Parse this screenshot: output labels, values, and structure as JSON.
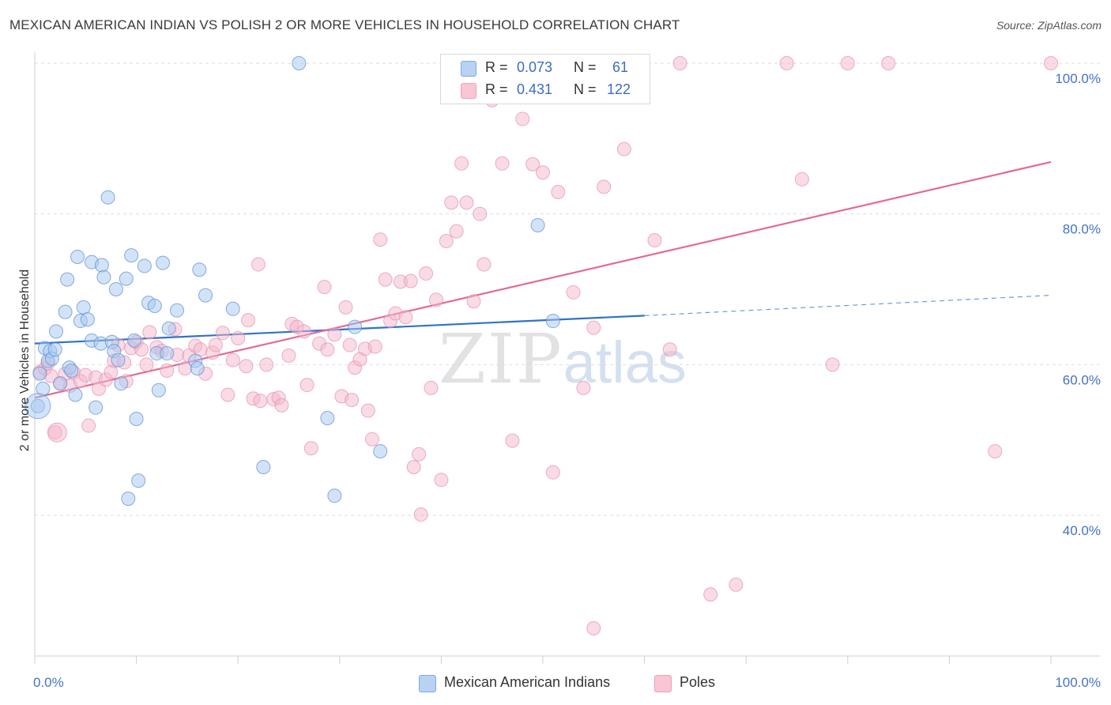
{
  "title": "MEXICAN AMERICAN INDIAN VS POLISH 2 OR MORE VEHICLES IN HOUSEHOLD CORRELATION CHART",
  "source": "Source: ZipAtlas.com",
  "watermark": {
    "zip": "ZIP",
    "atlas": "atlas"
  },
  "legend": {
    "rows": [
      {
        "r_label": "R =",
        "r_value": "0.073",
        "n_label": "N =",
        "n_value": "61"
      },
      {
        "r_label": "R =",
        "r_value": "0.431",
        "n_label": "N =",
        "n_value": "122"
      }
    ],
    "bottom": [
      "Mexican American Indians",
      "Poles"
    ]
  },
  "colors": {
    "blue_fill": "#a8c8f0",
    "blue_line": "#2f72c8",
    "pink_fill": "#f4b8cb",
    "pink_line": "#e26b93",
    "tick": "#4472c4"
  },
  "chart_data": {
    "type": "scatter",
    "title": "MEXICAN AMERICAN INDIAN VS POLISH 2 OR MORE VEHICLES IN HOUSEHOLD CORRELATION CHART",
    "xlabel": "",
    "ylabel": "2 or more Vehicles in Household",
    "xlim": [
      0,
      100
    ],
    "ylim": [
      20,
      102
    ],
    "x_tick_labels": [
      "0.0%",
      "100.0%"
    ],
    "y_ticks": [
      40,
      60,
      80,
      100
    ],
    "y_tick_labels": [
      "40.0%",
      "60.0%",
      "80.0%",
      "100.0%"
    ],
    "grid": true,
    "legend_placement": "top-center",
    "series": [
      {
        "name": "Mexican American Indians",
        "trend": {
          "x0": 0,
          "y0": 62.8,
          "x1": 60,
          "y1": 66.5,
          "dash_to_x": 100,
          "dash_to_y": 69.2
        },
        "points": [
          [
            0.3,
            54.5
          ],
          [
            0.5,
            58.8
          ],
          [
            0.8,
            56.8
          ],
          [
            1.0,
            62.2
          ],
          [
            1.3,
            60.5
          ],
          [
            1.5,
            61.8
          ],
          [
            1.7,
            60.8
          ],
          [
            2.0,
            62.0
          ],
          [
            2.1,
            64.4
          ],
          [
            2.5,
            57.5
          ],
          [
            3.0,
            67.0
          ],
          [
            3.2,
            71.3
          ],
          [
            3.4,
            59.6
          ],
          [
            3.6,
            59.2
          ],
          [
            4.0,
            56.0
          ],
          [
            4.2,
            74.3
          ],
          [
            4.5,
            65.8
          ],
          [
            4.8,
            67.6
          ],
          [
            5.2,
            66.0
          ],
          [
            5.6,
            73.6
          ],
          [
            5.6,
            63.2
          ],
          [
            6.0,
            54.3
          ],
          [
            6.5,
            62.8
          ],
          [
            6.6,
            73.2
          ],
          [
            6.8,
            71.6
          ],
          [
            7.2,
            82.2
          ],
          [
            7.6,
            63.0
          ],
          [
            7.8,
            61.8
          ],
          [
            8.0,
            70.0
          ],
          [
            8.2,
            60.6
          ],
          [
            8.5,
            57.5
          ],
          [
            9.0,
            71.4
          ],
          [
            9.2,
            42.2
          ],
          [
            9.5,
            74.5
          ],
          [
            9.8,
            63.2
          ],
          [
            10.0,
            52.8
          ],
          [
            10.2,
            44.6
          ],
          [
            10.8,
            73.1
          ],
          [
            11.2,
            68.2
          ],
          [
            11.8,
            67.8
          ],
          [
            12.0,
            61.5
          ],
          [
            12.2,
            56.6
          ],
          [
            12.6,
            73.5
          ],
          [
            13.0,
            61.5
          ],
          [
            13.2,
            64.8
          ],
          [
            14.0,
            67.2
          ],
          [
            15.8,
            60.5
          ],
          [
            16.0,
            59.5
          ],
          [
            16.2,
            72.6
          ],
          [
            16.8,
            69.2
          ],
          [
            19.5,
            67.4
          ],
          [
            22.5,
            46.4
          ],
          [
            26.0,
            100.0
          ],
          [
            28.8,
            52.9
          ],
          [
            29.5,
            42.6
          ],
          [
            31.5,
            65.0
          ],
          [
            34.0,
            48.5
          ],
          [
            49.5,
            78.5
          ],
          [
            51.0,
            65.8
          ]
        ]
      },
      {
        "name": "Poles",
        "trend": {
          "x0": 0,
          "y0": 55.6,
          "x1": 100,
          "y1": 86.9
        },
        "points": [
          [
            0.5,
            59.0
          ],
          [
            1.0,
            59.5
          ],
          [
            1.3,
            60.2
          ],
          [
            1.6,
            58.5
          ],
          [
            2.0,
            51.0
          ],
          [
            2.5,
            57.5
          ],
          [
            3.0,
            58.8
          ],
          [
            3.5,
            57.2
          ],
          [
            3.8,
            59.0
          ],
          [
            4.5,
            57.8
          ],
          [
            5.0,
            58.6
          ],
          [
            5.3,
            51.9
          ],
          [
            6.0,
            58.3
          ],
          [
            6.3,
            56.8
          ],
          [
            7.0,
            58.0
          ],
          [
            7.5,
            59.0
          ],
          [
            7.8,
            60.5
          ],
          [
            8.2,
            62.6
          ],
          [
            8.8,
            60.3
          ],
          [
            9.0,
            57.8
          ],
          [
            9.5,
            62.2
          ],
          [
            10.0,
            63.0
          ],
          [
            10.5,
            62.0
          ],
          [
            11.0,
            60.0
          ],
          [
            11.3,
            64.3
          ],
          [
            12.0,
            62.3
          ],
          [
            12.5,
            61.8
          ],
          [
            13.0,
            59.2
          ],
          [
            13.8,
            64.7
          ],
          [
            14.0,
            61.3
          ],
          [
            14.8,
            59.5
          ],
          [
            15.2,
            61.2
          ],
          [
            15.8,
            62.5
          ],
          [
            16.3,
            62.0
          ],
          [
            16.8,
            58.8
          ],
          [
            17.5,
            61.6
          ],
          [
            17.8,
            62.6
          ],
          [
            18.5,
            64.2
          ],
          [
            19.0,
            56.0
          ],
          [
            19.5,
            60.6
          ],
          [
            20.0,
            63.5
          ],
          [
            20.8,
            59.8
          ],
          [
            21.0,
            65.9
          ],
          [
            21.5,
            55.5
          ],
          [
            22.2,
            55.2
          ],
          [
            22.0,
            73.3
          ],
          [
            22.8,
            60.0
          ],
          [
            23.5,
            55.4
          ],
          [
            24.0,
            55.6
          ],
          [
            24.3,
            54.6
          ],
          [
            25.0,
            61.2
          ],
          [
            25.3,
            65.4
          ],
          [
            25.8,
            65.0
          ],
          [
            26.5,
            64.4
          ],
          [
            26.8,
            57.3
          ],
          [
            27.2,
            48.9
          ],
          [
            28.0,
            62.8
          ],
          [
            28.5,
            70.3
          ],
          [
            28.8,
            62.0
          ],
          [
            29.5,
            64.0
          ],
          [
            30.2,
            55.8
          ],
          [
            30.6,
            67.6
          ],
          [
            31.0,
            62.6
          ],
          [
            31.2,
            55.3
          ],
          [
            31.5,
            59.6
          ],
          [
            32.0,
            60.7
          ],
          [
            32.5,
            62.1
          ],
          [
            32.8,
            53.9
          ],
          [
            33.2,
            50.1
          ],
          [
            33.5,
            62.4
          ],
          [
            34.0,
            76.6
          ],
          [
            34.5,
            71.3
          ],
          [
            35.0,
            65.8
          ],
          [
            35.5,
            66.8
          ],
          [
            36.0,
            71.0
          ],
          [
            36.5,
            66.3
          ],
          [
            37.0,
            71.1
          ],
          [
            37.3,
            46.4
          ],
          [
            37.8,
            48.1
          ],
          [
            38.0,
            40.1
          ],
          [
            38.5,
            72.1
          ],
          [
            39.0,
            56.9
          ],
          [
            39.5,
            68.6
          ],
          [
            40.0,
            44.7
          ],
          [
            40.5,
            76.4
          ],
          [
            41.0,
            81.5
          ],
          [
            41.5,
            77.7
          ],
          [
            42.0,
            86.7
          ],
          [
            42.5,
            81.5
          ],
          [
            43.2,
            68.4
          ],
          [
            43.8,
            80.0
          ],
          [
            44.2,
            73.3
          ],
          [
            45.0,
            95.1
          ],
          [
            45.5,
            98.0
          ],
          [
            46.0,
            86.7
          ],
          [
            47.0,
            49.9
          ],
          [
            47.5,
            100.0
          ],
          [
            48.0,
            92.6
          ],
          [
            49.0,
            86.6
          ],
          [
            50.0,
            85.5
          ],
          [
            51.0,
            45.7
          ],
          [
            51.5,
            82.9
          ],
          [
            52.0,
            100.0
          ],
          [
            53.0,
            69.6
          ],
          [
            54.0,
            56.9
          ],
          [
            55.0,
            64.9
          ],
          [
            56.0,
            83.6
          ],
          [
            58.0,
            88.6
          ],
          [
            61.0,
            76.5
          ],
          [
            62.5,
            62.0
          ],
          [
            63.5,
            100.0
          ],
          [
            66.5,
            29.5
          ],
          [
            69.0,
            30.8
          ],
          [
            74.0,
            100.0
          ],
          [
            75.5,
            84.6
          ],
          [
            78.5,
            60.0
          ],
          [
            80.0,
            100.0
          ],
          [
            84.0,
            100.0
          ],
          [
            94.5,
            48.5
          ],
          [
            100.0,
            100.0
          ],
          [
            55.0,
            25.0
          ]
        ]
      }
    ]
  }
}
